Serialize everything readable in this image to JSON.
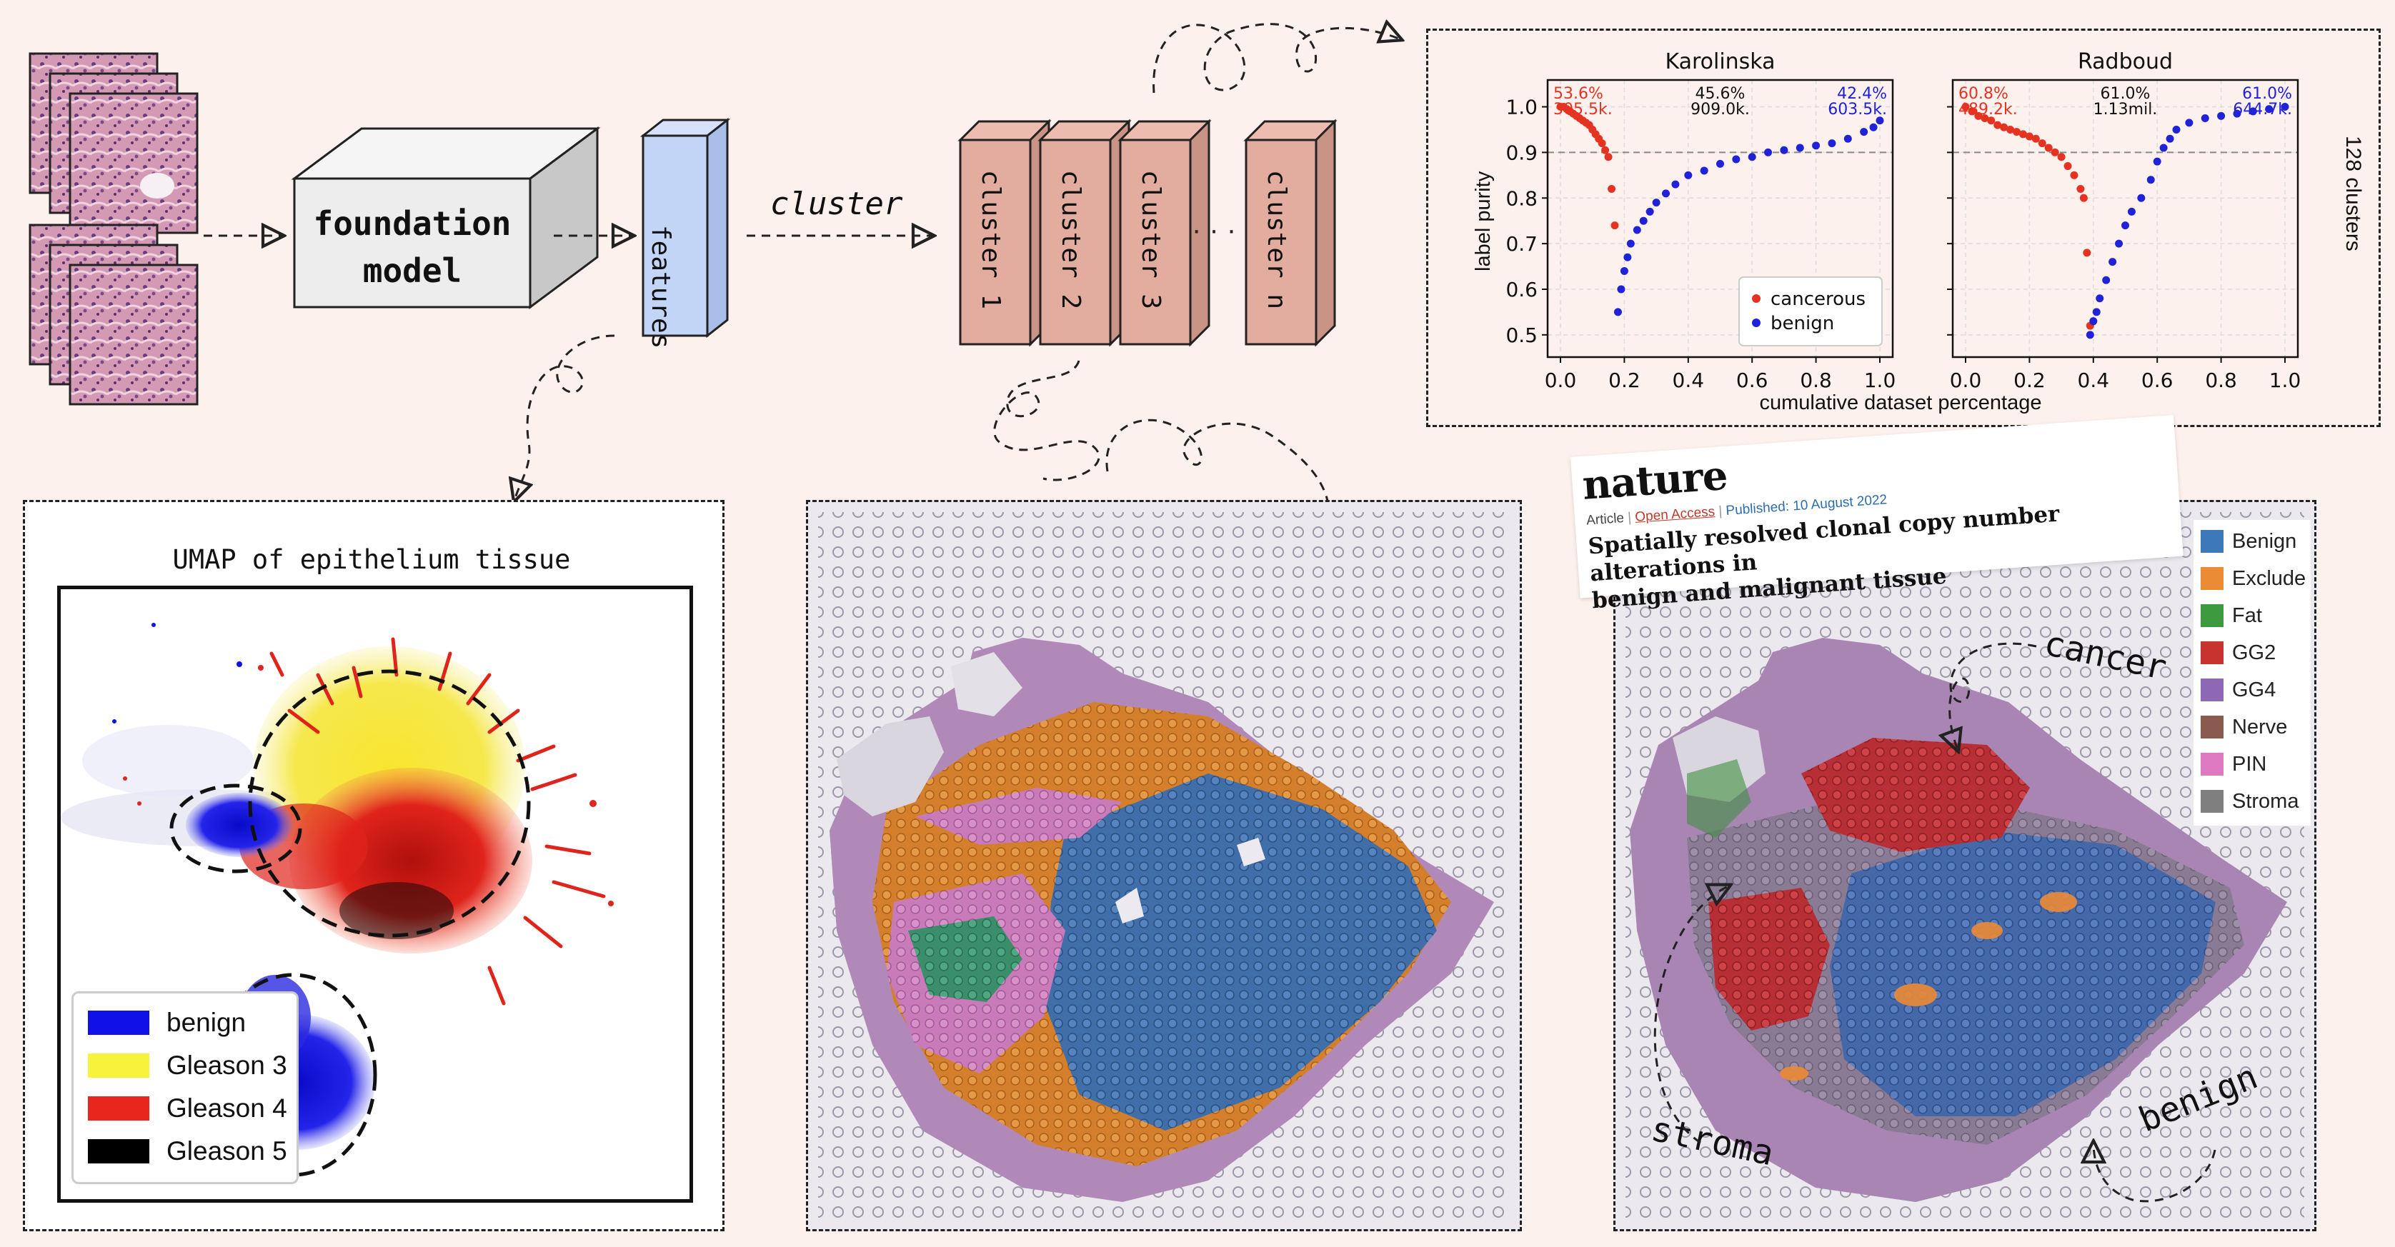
{
  "pipeline": {
    "model_label_line1": "foundation",
    "model_label_line2": "model",
    "features_label": "features",
    "cluster_arrow_label": "cluster",
    "clusters": [
      "cluster 1",
      "cluster 2",
      "cluster 3",
      "cluster n"
    ],
    "ellipsis": "· · ·"
  },
  "chart_data": [
    {
      "type": "scatter",
      "title": "Karolinska",
      "xlabel": "cumulative dataset percentage",
      "ylabel": "label purity",
      "xlim": [
        0.0,
        1.0
      ],
      "ylim": [
        0.47,
        1.04
      ],
      "xticks": [
        "0.0",
        "0.2",
        "0.4",
        "0.6",
        "0.8",
        "1.0"
      ],
      "yticks": [
        "0.5",
        "0.6",
        "0.7",
        "0.8",
        "0.9",
        "1.0"
      ],
      "threshold": 0.9,
      "grid": true,
      "legend_position": "bottom-right",
      "annotations": {
        "left": [
          "53.6%",
          "305.5k."
        ],
        "center": [
          "45.6%",
          "909.0k."
        ],
        "right": [
          "42.4%",
          "603.5k."
        ]
      },
      "series": [
        {
          "name": "cancerous",
          "color": "#e53322",
          "x": [
            0.0,
            0.01,
            0.02,
            0.03,
            0.04,
            0.05,
            0.06,
            0.07,
            0.08,
            0.09,
            0.1,
            0.11,
            0.12,
            0.13,
            0.14,
            0.15,
            0.16,
            0.17
          ],
          "y": [
            1.0,
            1.0,
            0.995,
            0.99,
            0.985,
            0.98,
            0.975,
            0.97,
            0.965,
            0.96,
            0.95,
            0.94,
            0.93,
            0.92,
            0.905,
            0.89,
            0.82,
            0.74
          ]
        },
        {
          "name": "benign",
          "color": "#1f22d6",
          "x": [
            0.18,
            0.19,
            0.2,
            0.21,
            0.22,
            0.24,
            0.26,
            0.28,
            0.3,
            0.33,
            0.36,
            0.4,
            0.45,
            0.5,
            0.55,
            0.6,
            0.65,
            0.7,
            0.75,
            0.8,
            0.85,
            0.9,
            0.95,
            0.98,
            1.0
          ],
          "y": [
            0.55,
            0.6,
            0.64,
            0.67,
            0.7,
            0.73,
            0.75,
            0.77,
            0.79,
            0.81,
            0.83,
            0.85,
            0.86,
            0.875,
            0.885,
            0.89,
            0.9,
            0.905,
            0.91,
            0.915,
            0.92,
            0.93,
            0.945,
            0.955,
            0.97
          ]
        }
      ]
    },
    {
      "type": "scatter",
      "title": "Radboud",
      "xlabel": "cumulative dataset percentage",
      "ylabel": "",
      "side_label": "128 clusters",
      "xlim": [
        0.0,
        1.0
      ],
      "ylim": [
        0.47,
        1.04
      ],
      "xticks": [
        "0.0",
        "0.2",
        "0.4",
        "0.6",
        "0.8",
        "1.0"
      ],
      "yticks": [
        "0.5",
        "0.6",
        "0.7",
        "0.8",
        "0.9",
        "1.0"
      ],
      "threshold": 0.9,
      "grid": true,
      "annotations": {
        "left": [
          "60.8%",
          "489.2k."
        ],
        "center": [
          "61.0%",
          "1.13mil."
        ],
        "right": [
          "61.0%",
          "644.7k."
        ]
      },
      "series": [
        {
          "name": "cancerous",
          "color": "#e53322",
          "x": [
            0.0,
            0.02,
            0.04,
            0.06,
            0.08,
            0.1,
            0.12,
            0.14,
            0.16,
            0.18,
            0.2,
            0.22,
            0.24,
            0.26,
            0.28,
            0.3,
            0.32,
            0.34,
            0.36,
            0.37,
            0.38,
            0.39
          ],
          "y": [
            1.0,
            0.99,
            0.98,
            0.975,
            0.97,
            0.96,
            0.955,
            0.95,
            0.945,
            0.94,
            0.935,
            0.93,
            0.92,
            0.91,
            0.9,
            0.89,
            0.87,
            0.85,
            0.82,
            0.8,
            0.68,
            0.52
          ]
        },
        {
          "name": "benign",
          "color": "#1f22d6",
          "x": [
            0.39,
            0.4,
            0.41,
            0.42,
            0.44,
            0.46,
            0.48,
            0.5,
            0.52,
            0.55,
            0.58,
            0.6,
            0.62,
            0.64,
            0.66,
            0.7,
            0.75,
            0.8,
            0.85,
            0.9,
            0.95,
            1.0
          ],
          "y": [
            0.5,
            0.53,
            0.55,
            0.58,
            0.62,
            0.66,
            0.7,
            0.74,
            0.77,
            0.8,
            0.84,
            0.88,
            0.91,
            0.93,
            0.95,
            0.965,
            0.975,
            0.98,
            0.985,
            0.99,
            0.995,
            1.0
          ]
        }
      ]
    }
  ],
  "umap": {
    "title": "UMAP of epithelium tissue",
    "legend": [
      {
        "label": "benign",
        "color": "#1010e8"
      },
      {
        "label": "Gleason 3",
        "color": "#f7f23a"
      },
      {
        "label": "Gleason 4",
        "color": "#e8261e"
      },
      {
        "label": "Gleason 5",
        "color": "#000000"
      }
    ]
  },
  "nature_card": {
    "logo": "nature",
    "meta_type": "Article",
    "meta_access": "Open Access",
    "meta_published": "Published: 10 August 2022",
    "headline_line1": "Spatially resolved clonal copy number alterations in",
    "headline_line2": "benign and malignant tissue"
  },
  "tissue_legend": [
    {
      "label": "Benign",
      "color": "#3d78b8"
    },
    {
      "label": "Exclude",
      "color": "#ec8b35"
    },
    {
      "label": "Fat",
      "color": "#3e9a3e"
    },
    {
      "label": "GG2",
      "color": "#c8332e"
    },
    {
      "label": "GG4",
      "color": "#8d68b5"
    },
    {
      "label": "Nerve",
      "color": "#8b5a4e"
    },
    {
      "label": "PIN",
      "color": "#dc79c0"
    },
    {
      "label": "Stroma",
      "color": "#7f7f7f"
    }
  ],
  "annotations": {
    "cancer": "cancer",
    "stroma": "stroma",
    "benign": "benign"
  }
}
